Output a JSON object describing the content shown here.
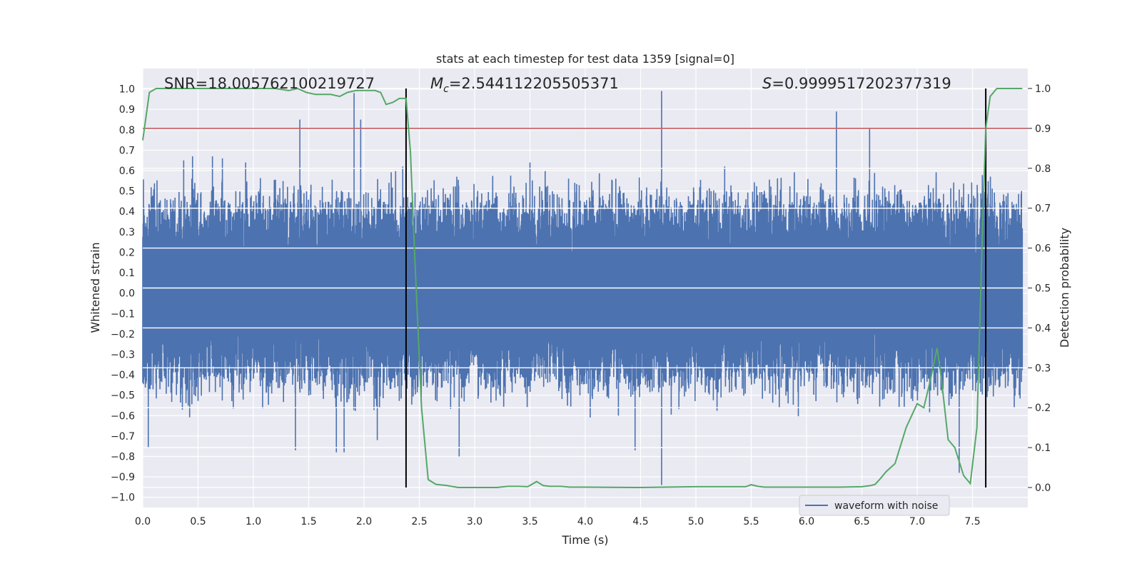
{
  "chart_data": {
    "type": "line",
    "title": "stats at each timestep for test data 1359 [signal=0]",
    "xlabel": "Time (s)",
    "ylabel": "Whitened strain",
    "y2label": "Detection probability",
    "xlim": [
      0.0,
      8.0
    ],
    "ylim": [
      -1.05,
      1.1
    ],
    "y2lim": [
      -0.05,
      1.05
    ],
    "x_ticks": [
      "0.0",
      "0.5",
      "1.0",
      "1.5",
      "2.0",
      "2.5",
      "3.0",
      "3.5",
      "4.0",
      "4.5",
      "5.0",
      "5.5",
      "6.0",
      "6.5",
      "7.0",
      "7.5"
    ],
    "y_ticks": [
      "1.0",
      "0.9",
      "0.8",
      "0.7",
      "0.6",
      "0.5",
      "0.4",
      "0.3",
      "0.2",
      "0.1",
      "0.0",
      "-0.1",
      "-0.2",
      "-0.3",
      "-0.4",
      "-0.5",
      "-0.6",
      "-0.7",
      "-0.8",
      "-0.9",
      "-1.0"
    ],
    "y2_ticks": [
      "1.0",
      "0.9",
      "0.8",
      "0.7",
      "0.6",
      "0.5",
      "0.4",
      "0.3",
      "0.2",
      "0.1",
      "0.0"
    ],
    "grid": true,
    "legend_position": "lower-right",
    "annotations": {
      "snr": "SNR=18.005762100219727",
      "mc_symbol": "M",
      "mc_sub": "c",
      "mc_value": "=2.544112205505371",
      "s_symbol": "S",
      "s_value": "=0.9999517202377319"
    },
    "threshold": {
      "value": 0.9,
      "axis": "y2",
      "color": "#c44e52"
    },
    "vertical_markers": [
      2.38,
      7.62
    ],
    "series": [
      {
        "name": "waveform with noise",
        "axis": "y",
        "color": "#4c72b0",
        "kind": "noise-strain",
        "envelope": [
          0.35,
          -0.35
        ],
        "spikes": [
          {
            "x": 0.05,
            "y": -0.76
          },
          {
            "x": 0.37,
            "y": 0.65
          },
          {
            "x": 0.45,
            "y": 0.67
          },
          {
            "x": 0.63,
            "y": 0.67
          },
          {
            "x": 0.72,
            "y": 0.66
          },
          {
            "x": 0.93,
            "y": 0.64
          },
          {
            "x": 1.38,
            "y": -0.77
          },
          {
            "x": 1.42,
            "y": 0.85
          },
          {
            "x": 1.75,
            "y": -0.78
          },
          {
            "x": 1.82,
            "y": -0.78
          },
          {
            "x": 1.91,
            "y": 0.98
          },
          {
            "x": 1.97,
            "y": 0.85
          },
          {
            "x": 2.12,
            "y": -0.72
          },
          {
            "x": 2.35,
            "y": 0.62
          },
          {
            "x": 2.86,
            "y": -0.8
          },
          {
            "x": 3.5,
            "y": 0.64
          },
          {
            "x": 4.45,
            "y": -0.77
          },
          {
            "x": 4.69,
            "y": 0.99
          },
          {
            "x": 4.69,
            "y": -0.94
          },
          {
            "x": 5.26,
            "y": 0.62
          },
          {
            "x": 6.27,
            "y": 0.89
          },
          {
            "x": 6.57,
            "y": 0.81
          },
          {
            "x": 7.38,
            "y": -0.88
          },
          {
            "x": 7.62,
            "y": 0.5
          }
        ]
      },
      {
        "name": "",
        "axis": "y2",
        "color": "#55a868",
        "x": [
          0.0,
          0.06,
          0.12,
          0.2,
          0.5,
          1.0,
          1.2,
          1.32,
          1.4,
          1.48,
          1.56,
          1.62,
          1.7,
          1.78,
          1.85,
          1.93,
          2.02,
          2.1,
          2.15,
          2.2,
          2.26,
          2.32,
          2.38,
          2.42,
          2.46,
          2.52,
          2.58,
          2.65,
          2.75,
          2.85,
          3.0,
          3.2,
          3.3,
          3.4,
          3.48,
          3.56,
          3.62,
          3.68,
          3.78,
          3.86,
          4.0,
          4.5,
          5.0,
          5.3,
          5.45,
          5.5,
          5.56,
          5.62,
          5.7,
          6.0,
          6.3,
          6.5,
          6.58,
          6.62,
          6.66,
          6.72,
          6.8,
          6.9,
          7.0,
          7.06,
          7.12,
          7.18,
          7.22,
          7.28,
          7.34,
          7.42,
          7.48,
          7.54,
          7.58,
          7.62,
          7.66,
          7.72,
          7.8,
          7.95
        ],
        "y": [
          0.87,
          0.99,
          1.0,
          1.0,
          1.0,
          1.0,
          1.0,
          0.995,
          1.0,
          0.99,
          0.985,
          0.985,
          0.985,
          0.98,
          0.99,
          0.995,
          0.995,
          0.995,
          0.99,
          0.96,
          0.965,
          0.975,
          0.975,
          0.84,
          0.57,
          0.2,
          0.02,
          0.008,
          0.005,
          0.0,
          0.0,
          0.0,
          0.003,
          0.003,
          0.002,
          0.015,
          0.005,
          0.003,
          0.003,
          0.001,
          0.001,
          0.0,
          0.002,
          0.002,
          0.002,
          0.007,
          0.003,
          0.001,
          0.001,
          0.001,
          0.001,
          0.002,
          0.005,
          0.008,
          0.02,
          0.04,
          0.06,
          0.15,
          0.21,
          0.2,
          0.27,
          0.35,
          0.27,
          0.12,
          0.1,
          0.03,
          0.01,
          0.15,
          0.55,
          0.9,
          0.98,
          1.0,
          1.0,
          1.0
        ]
      }
    ]
  }
}
